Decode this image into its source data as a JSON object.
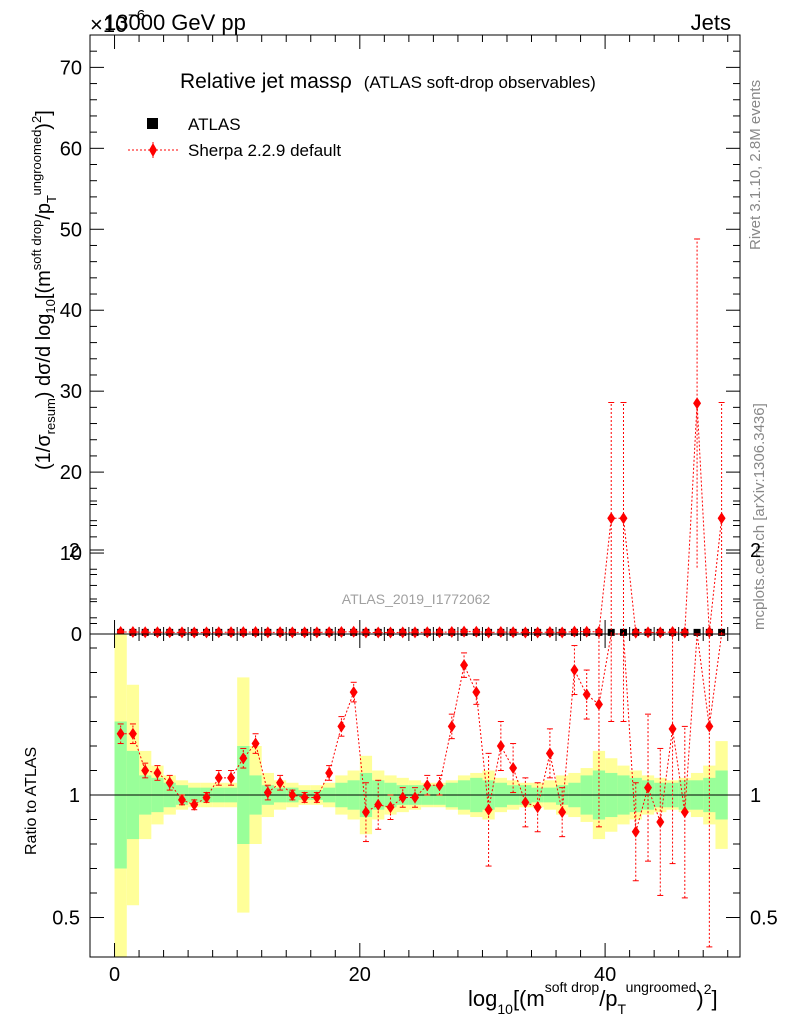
{
  "header": {
    "energy_label": "13000 GeV pp",
    "exponent_label": "×10",
    "exponent_power": "−6",
    "category_label": "Jets"
  },
  "side_labels": {
    "rivet": "Rivet 3.1.10,  2.8M events",
    "mcplots": "mcplots.cern.ch [arXiv:1306.3436]"
  },
  "watermark": "ATLAS_2019_I1772062",
  "chart_data": {
    "type": "scatter",
    "title": "Relative jet mass",
    "title_symbol": "ρ",
    "subtitle": "(ATLAS soft-drop observables)",
    "xlabel": "log10[(m^soft drop/pT^ungroomed)^2]",
    "ylabel": "(1/σ_resum) dσ/d log10[(m^soft drop/pT^ungroomed)^2]",
    "ratio_ylabel": "Ratio to ATLAS",
    "xlim": [
      -2,
      51
    ],
    "ylim": [
      0,
      74
    ],
    "ratio_ylim": [
      0.35,
      2.35
    ],
    "x_ticks": [
      0,
      20,
      40
    ],
    "y_ticks": [
      0,
      10,
      20,
      30,
      40,
      50,
      60,
      70
    ],
    "ratio_ticks": [
      0.5,
      1,
      2
    ],
    "legend": [
      {
        "name": "ATLAS",
        "marker": "square",
        "color": "#000000"
      },
      {
        "name": "Sherpa 2.2.9 default",
        "marker": "diamond",
        "color": "#ff0000"
      }
    ],
    "x": [
      0.5,
      1.5,
      2.5,
      3.5,
      4.5,
      5.5,
      6.5,
      7.5,
      8.5,
      9.5,
      10.5,
      11.5,
      12.5,
      13.5,
      14.5,
      15.5,
      16.5,
      17.5,
      18.5,
      19.5,
      20.5,
      21.5,
      22.5,
      23.5,
      24.5,
      25.5,
      26.5,
      27.5,
      28.5,
      29.5,
      30.5,
      31.5,
      32.5,
      33.5,
      34.5,
      35.5,
      36.5,
      37.5,
      38.5,
      39.5,
      40.5,
      41.5,
      42.5,
      43.5,
      44.5,
      45.5,
      46.5,
      47.5,
      48.5,
      49.5
    ],
    "series": [
      {
        "name": "ATLAS",
        "values": [
          0.2,
          0.2,
          0.2,
          0.2,
          0.2,
          0.2,
          0.2,
          0.2,
          0.2,
          0.2,
          0.2,
          0.2,
          0.2,
          0.2,
          0.2,
          0.2,
          0.2,
          0.2,
          0.2,
          0.2,
          0.2,
          0.2,
          0.2,
          0.2,
          0.2,
          0.2,
          0.2,
          0.2,
          0.2,
          0.2,
          0.2,
          0.2,
          0.2,
          0.2,
          0.2,
          0.2,
          0.2,
          0.2,
          0.2,
          0.2,
          0.2,
          0.2,
          0.2,
          0.2,
          0.2,
          0.2,
          0.2,
          0.2,
          0.2,
          0.2
        ]
      },
      {
        "name": "Sherpa 2.2.9 default",
        "values": [
          0.25,
          0.25,
          0.22,
          0.22,
          0.21,
          0.2,
          0.19,
          0.2,
          0.21,
          0.21,
          0.23,
          0.24,
          0.2,
          0.21,
          0.2,
          0.2,
          0.2,
          0.22,
          0.25,
          0.28,
          0.19,
          0.19,
          0.19,
          0.2,
          0.2,
          0.21,
          0.21,
          0.25,
          0.3,
          0.28,
          0.19,
          0.24,
          0.22,
          0.19,
          0.19,
          0.23,
          0.19,
          0.3,
          0.28,
          0.27,
          14.3,
          14.3,
          0.17,
          0.2,
          0.18,
          0.25,
          0.19,
          28.5,
          0.25,
          14.3
        ],
        "errors": [
          0.01,
          0.01,
          0.01,
          0.01,
          0.01,
          0.01,
          0.01,
          0.01,
          0.01,
          0.01,
          0.01,
          0.01,
          0.01,
          0.01,
          0.01,
          0.01,
          0.01,
          0.01,
          0.01,
          0.01,
          0.02,
          0.02,
          0.01,
          0.01,
          0.01,
          0.01,
          0.01,
          0.01,
          0.01,
          0.01,
          0.05,
          0.02,
          0.02,
          0.02,
          0.02,
          0.02,
          0.02,
          0.02,
          0.02,
          0.05,
          14.3,
          14.3,
          0.04,
          0.04,
          0.04,
          0.06,
          0.05,
          20.3,
          0.05,
          14.3
        ]
      }
    ],
    "ratio": {
      "values": [
        1.25,
        1.25,
        1.1,
        1.09,
        1.05,
        0.98,
        0.96,
        0.99,
        1.07,
        1.07,
        1.15,
        1.21,
        1.01,
        1.05,
        1.0,
        0.99,
        0.99,
        1.09,
        1.28,
        1.42,
        0.93,
        0.96,
        0.95,
        0.99,
        0.99,
        1.04,
        1.04,
        1.28,
        1.53,
        1.42,
        0.94,
        1.2,
        1.11,
        0.97,
        0.95,
        1.17,
        0.93,
        1.51,
        1.41,
        1.37,
        2.8,
        2.8,
        0.85,
        1.03,
        0.89,
        1.27,
        0.93,
        2.8,
        1.28,
        2.8
      ],
      "err_low": [
        0.04,
        0.04,
        0.03,
        0.03,
        0.03,
        0.02,
        0.02,
        0.02,
        0.03,
        0.03,
        0.04,
        0.04,
        0.03,
        0.03,
        0.02,
        0.02,
        0.02,
        0.03,
        0.04,
        0.04,
        0.12,
        0.1,
        0.05,
        0.04,
        0.04,
        0.04,
        0.04,
        0.05,
        0.05,
        0.05,
        0.23,
        0.1,
        0.1,
        0.1,
        0.1,
        0.1,
        0.1,
        0.1,
        0.1,
        0.5,
        1.5,
        1.5,
        0.2,
        0.3,
        0.3,
        0.55,
        0.35,
        1.0,
        0.9,
        1.0
      ],
      "err_high": [
        0.04,
        0.04,
        0.03,
        0.03,
        0.03,
        0.02,
        0.02,
        0.02,
        0.03,
        0.03,
        0.04,
        0.04,
        0.03,
        0.03,
        0.02,
        0.02,
        0.02,
        0.03,
        0.04,
        0.04,
        0.12,
        0.1,
        0.05,
        0.04,
        0.04,
        0.04,
        0.04,
        0.05,
        0.05,
        0.05,
        0.23,
        0.1,
        0.1,
        0.1,
        0.1,
        0.1,
        0.1,
        0.1,
        0.1,
        0.5,
        0.5,
        0.5,
        0.2,
        0.3,
        0.3,
        0.55,
        0.35,
        0.5,
        0.5,
        0.5
      ],
      "band_inner": [
        0.3,
        0.18,
        0.08,
        0.07,
        0.05,
        0.04,
        0.03,
        0.03,
        0.03,
        0.03,
        0.2,
        0.08,
        0.04,
        0.03,
        0.03,
        0.02,
        0.02,
        0.03,
        0.05,
        0.06,
        0.09,
        0.06,
        0.05,
        0.04,
        0.04,
        0.04,
        0.04,
        0.05,
        0.06,
        0.07,
        0.06,
        0.05,
        0.04,
        0.04,
        0.03,
        0.03,
        0.04,
        0.05,
        0.08,
        0.1,
        0.09,
        0.08,
        0.07,
        0.06,
        0.05,
        0.05,
        0.06,
        0.06,
        0.07,
        0.1
      ],
      "band_outer": [
        0.7,
        0.45,
        0.18,
        0.12,
        0.08,
        0.06,
        0.05,
        0.05,
        0.05,
        0.05,
        0.48,
        0.2,
        0.09,
        0.06,
        0.05,
        0.04,
        0.04,
        0.05,
        0.08,
        0.1,
        0.16,
        0.1,
        0.08,
        0.07,
        0.06,
        0.05,
        0.05,
        0.06,
        0.08,
        0.09,
        0.1,
        0.07,
        0.06,
        0.05,
        0.05,
        0.06,
        0.08,
        0.09,
        0.11,
        0.18,
        0.15,
        0.12,
        0.1,
        0.08,
        0.07,
        0.06,
        0.07,
        0.09,
        0.12,
        0.22
      ]
    }
  }
}
